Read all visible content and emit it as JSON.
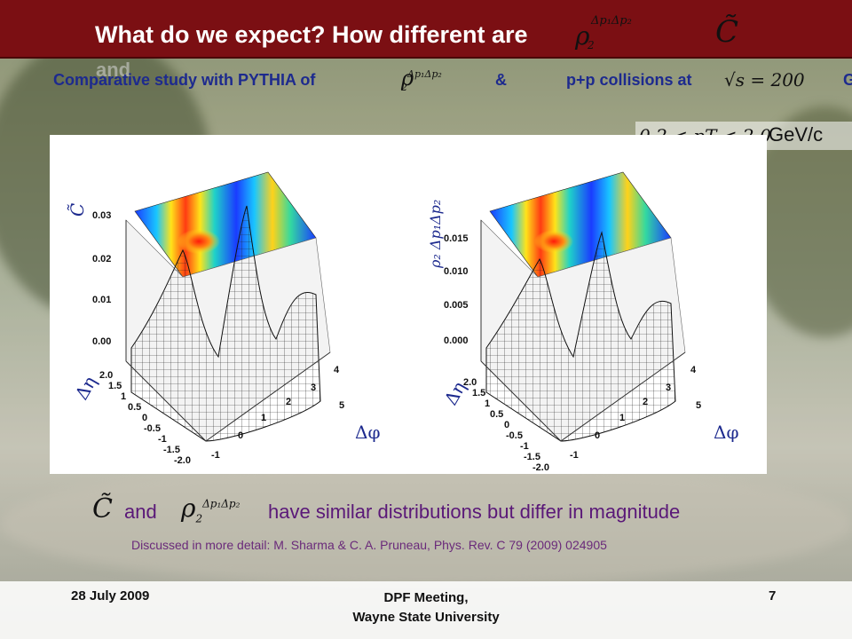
{
  "slide": {
    "title": "What do we expect? How different are",
    "title_continuation": "and",
    "title_symbols": {
      "rho": "ρ",
      "rho_sub": "2",
      "rho_sup": "Δp₁Δp₂",
      "c_tilde": "C̃"
    },
    "subtitle": {
      "prefix": "Comparative study with PYTHIA of",
      "ampersand": "&",
      "collisions": "p+p collisions at",
      "sqrt_s": "√s = 200",
      "trailing": "G"
    },
    "pt_range": {
      "expression": "0.2 < pT < 2.0",
      "unit": "GeV/c"
    },
    "plots": [
      {
        "z_label": "C̃",
        "z_ticks": [
          "0.03",
          "0.02",
          "0.01",
          "0.00"
        ],
        "eta_label": "Δη",
        "eta_ticks": [
          "2.0",
          "1.5",
          "1",
          "0.5",
          "0",
          "-0.5",
          "-1",
          "-1.5",
          "-2.0"
        ],
        "phi_label": "Δφ",
        "phi_ticks": [
          "-1",
          "0",
          "1",
          "2",
          "3",
          "4",
          "5"
        ]
      },
      {
        "z_label": "ρ₂ Δp₁Δp₂",
        "z_ticks": [
          "0.015",
          "0.010",
          "0.005",
          "0.000"
        ],
        "eta_label": "Δη",
        "eta_ticks": [
          "2.0",
          "1.5",
          "1",
          "0.5",
          "0",
          "-0.5",
          "-1",
          "-1.5",
          "-2.0"
        ],
        "phi_label": "Δφ",
        "phi_ticks": [
          "-1",
          "0",
          "1",
          "2",
          "3",
          "4",
          "5"
        ]
      }
    ],
    "bottom_text": {
      "symbol_c": "C̃",
      "and": "and",
      "symbol_rho": "ρ",
      "rho_sub": "2",
      "rho_sup": "Δp₁Δp₂",
      "rest": "have similar distributions but differ in magnitude"
    },
    "citation": "Discussed in more detail: M. Sharma & C. A. Pruneau, Phys. Rev. C 79 (2009) 024905",
    "footer": {
      "date": "28 July 2009",
      "meeting_line1": "DPF Meeting,",
      "meeting_line2": "Wayne State University",
      "page": "7"
    }
  }
}
